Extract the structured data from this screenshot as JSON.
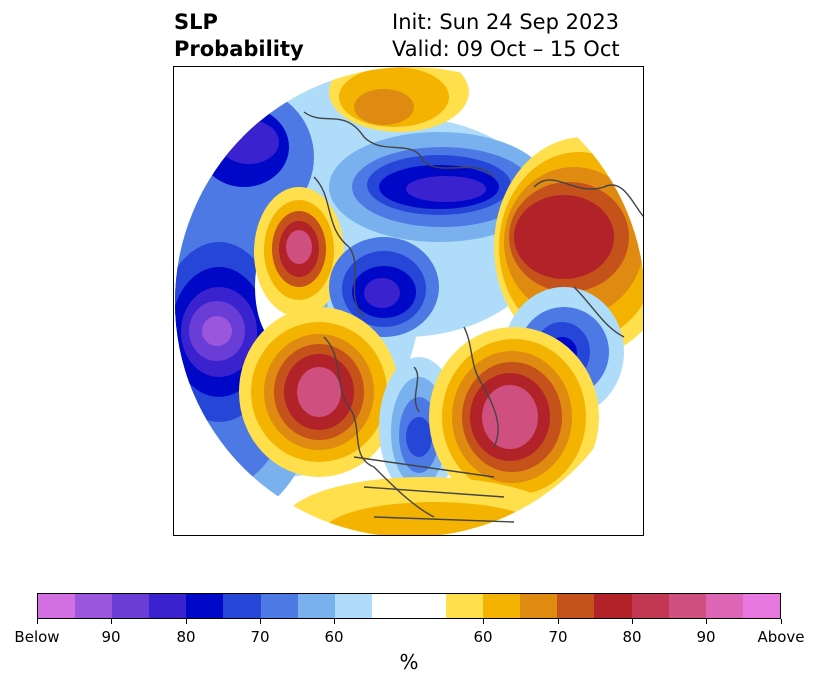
{
  "title": {
    "left_line1": "SLP",
    "left_line2": "Probability",
    "right_line1": "Init: Sun 24 Sep 2023",
    "right_line2": "Valid: 09 Oct – 15 Oct"
  },
  "map": {
    "projection": "north-polar-stereographic",
    "variable": "SLP probability",
    "anomaly_centers": [
      {
        "region": "North Pacific / Aleutians",
        "sign": "below",
        "level": "90"
      },
      {
        "region": "Western Canada / Alaska",
        "sign": "above",
        "level": "80"
      },
      {
        "region": "Eastern North Atlantic / Labrador Sea",
        "sign": "above",
        "level": "90"
      },
      {
        "region": "Hudson Bay / Great Lakes",
        "sign": "below",
        "level": "80"
      },
      {
        "region": "Arctic Ocean",
        "sign": "below",
        "level": "80"
      },
      {
        "region": "Central Siberia",
        "sign": "below",
        "level": "80"
      },
      {
        "region": "Western Russia / Europe",
        "sign": "above",
        "level": "80"
      },
      {
        "region": "Iceland / North Atlantic",
        "sign": "below",
        "level": "80"
      },
      {
        "region": "Kamchatka / NE Asia",
        "sign": "above",
        "level": "70"
      }
    ]
  },
  "colorbar": {
    "colors": [
      "#d36ee3",
      "#9a56dc",
      "#6a3dd6",
      "#3a22cf",
      "#0008c8",
      "#2646d8",
      "#4d79e4",
      "#79b1ef",
      "#aedcf9",
      "#ffffff",
      "#ffffff",
      "#ffe04c",
      "#f3b300",
      "#df8a10",
      "#c4521a",
      "#b12229",
      "#c23852",
      "#cf4f7e",
      "#de64b5",
      "#e877e0"
    ],
    "tick_labels": [
      "Below",
      "90",
      "80",
      "70",
      "60",
      "60",
      "70",
      "80",
      "90",
      "Above"
    ],
    "unit": "%"
  }
}
